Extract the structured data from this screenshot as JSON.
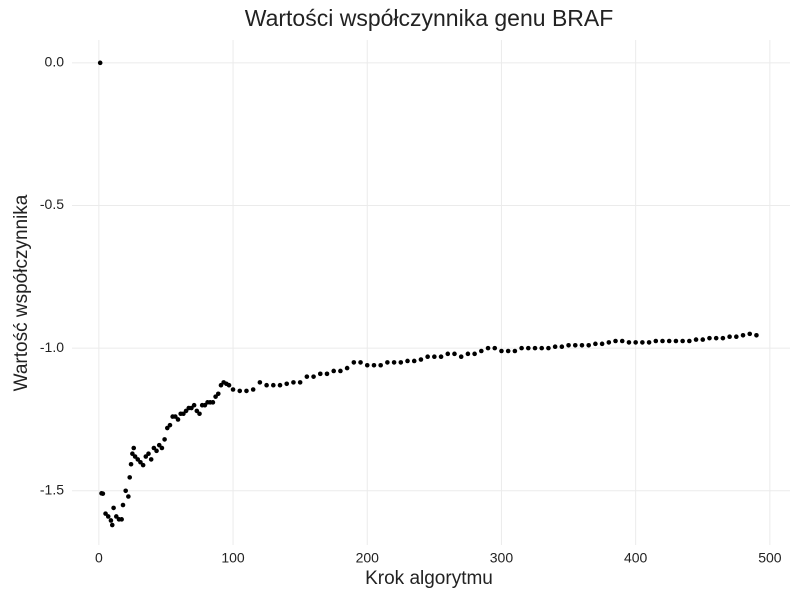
{
  "chart_data": {
    "type": "scatter",
    "title": "Wartości współczynnika genu BRAF",
    "x_label": "Krok algorytmu",
    "y_label": "Wartość współczynnika",
    "color": "#000000",
    "grid": true,
    "xlim": [
      -20,
      515
    ],
    "ylim": [
      -1.69,
      0.08
    ],
    "xticks": [
      0,
      100,
      200,
      300,
      400,
      500
    ],
    "yticks": [
      {
        "value": 0,
        "label": "0.0"
      },
      {
        "value": -0.5,
        "label": "-0.5"
      },
      {
        "value": -1,
        "label": "-1.0"
      },
      {
        "value": -1.5,
        "label": "-1.5"
      }
    ],
    "x": [
      1,
      2,
      3,
      5,
      7,
      9,
      10,
      11,
      13,
      15,
      17,
      18,
      20,
      22,
      23,
      24,
      25,
      26,
      27,
      29,
      31,
      33,
      35,
      37,
      39,
      41,
      43,
      45,
      47,
      49,
      51,
      53,
      55,
      57,
      59,
      61,
      63,
      65,
      67,
      69,
      71,
      73,
      75,
      77,
      79,
      81,
      83,
      85,
      87,
      89,
      91,
      93,
      95,
      97,
      100,
      105,
      110,
      115,
      120,
      125,
      130,
      135,
      140,
      145,
      150,
      155,
      160,
      165,
      170,
      175,
      180,
      185,
      190,
      195,
      200,
      205,
      210,
      215,
      220,
      225,
      230,
      235,
      240,
      245,
      250,
      255,
      260,
      265,
      270,
      275,
      280,
      285,
      290,
      295,
      300,
      305,
      310,
      315,
      320,
      325,
      330,
      335,
      340,
      345,
      350,
      355,
      360,
      365,
      370,
      375,
      380,
      385,
      390,
      395,
      400,
      405,
      410,
      415,
      420,
      425,
      430,
      435,
      440,
      445,
      450,
      455,
      460,
      465,
      470,
      475,
      480,
      485,
      490
    ],
    "y": [
      0,
      -1.509,
      -1.51,
      -1.58,
      -1.59,
      -1.604,
      -1.62,
      -1.56,
      -1.59,
      -1.6,
      -1.6,
      -1.55,
      -1.5,
      -1.52,
      -1.453,
      -1.407,
      -1.37,
      -1.35,
      -1.38,
      -1.39,
      -1.4,
      -1.41,
      -1.38,
      -1.37,
      -1.39,
      -1.35,
      -1.36,
      -1.34,
      -1.35,
      -1.32,
      -1.28,
      -1.27,
      -1.24,
      -1.24,
      -1.25,
      -1.23,
      -1.23,
      -1.22,
      -1.21,
      -1.21,
      -1.2,
      -1.22,
      -1.23,
      -1.2,
      -1.2,
      -1.19,
      -1.19,
      -1.19,
      -1.17,
      -1.16,
      -1.13,
      -1.12,
      -1.125,
      -1.13,
      -1.145,
      -1.15,
      -1.15,
      -1.145,
      -1.12,
      -1.13,
      -1.13,
      -1.13,
      -1.125,
      -1.12,
      -1.12,
      -1.1,
      -1.1,
      -1.09,
      -1.09,
      -1.08,
      -1.08,
      -1.07,
      -1.05,
      -1.05,
      -1.06,
      -1.06,
      -1.06,
      -1.05,
      -1.05,
      -1.05,
      -1.045,
      -1.045,
      -1.04,
      -1.03,
      -1.03,
      -1.03,
      -1.02,
      -1.02,
      -1.03,
      -1.02,
      -1.02,
      -1.01,
      -1.0,
      -1.0,
      -1.01,
      -1.01,
      -1.01,
      -1.0,
      -1.0,
      -1.0,
      -1.0,
      -1.0,
      -0.995,
      -0.995,
      -0.99,
      -0.99,
      -0.99,
      -0.99,
      -0.985,
      -0.985,
      -0.98,
      -0.975,
      -0.975,
      -0.98,
      -0.98,
      -0.98,
      -0.98,
      -0.975,
      -0.975,
      -0.975,
      -0.975,
      -0.975,
      -0.975,
      -0.97,
      -0.97,
      -0.965,
      -0.965,
      -0.965,
      -0.96,
      -0.96,
      -0.955,
      -0.95,
      -0.955
    ]
  }
}
